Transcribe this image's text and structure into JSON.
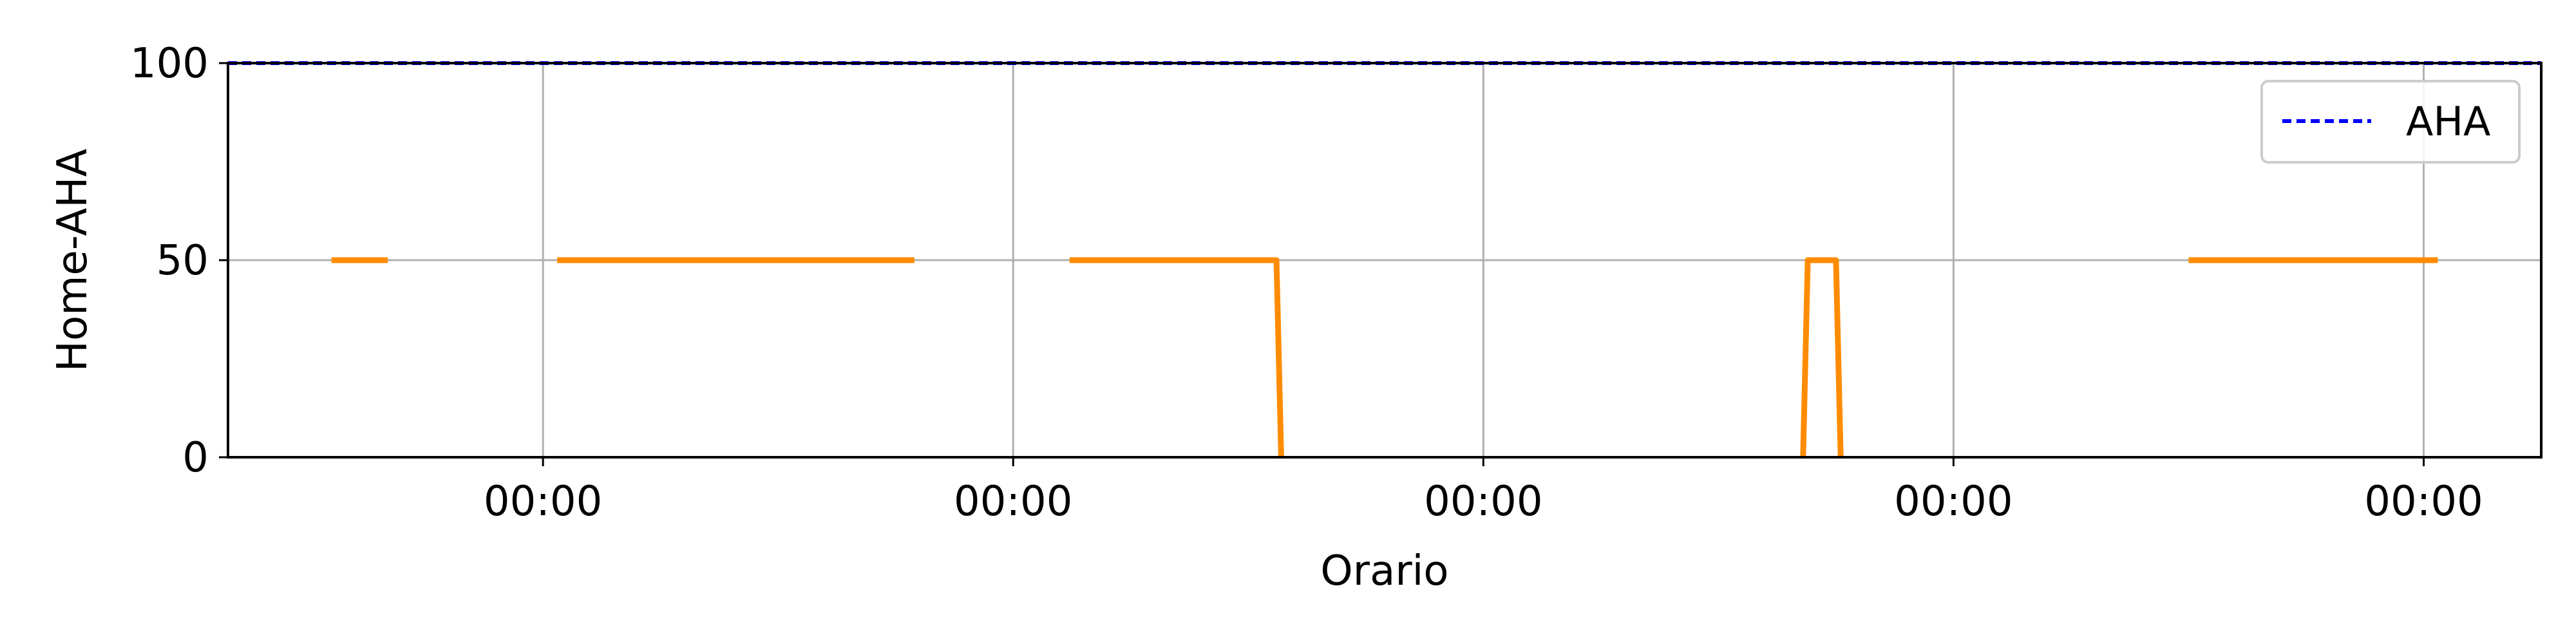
{
  "chart_data": {
    "type": "line",
    "title": "",
    "xlabel": "Orario",
    "ylabel": "Home-AHA",
    "ylim": [
      0,
      100
    ],
    "yticks": [
      0,
      50,
      100
    ],
    "xlim": [
      -0.67,
      4.25
    ],
    "xticks": [
      0,
      1,
      2,
      3,
      4
    ],
    "xtick_labels": [
      "00:00",
      "00:00",
      "00:00",
      "00:00",
      "00:00"
    ],
    "grid": true,
    "legend_position": "top-right",
    "series": [
      {
        "name": "",
        "color": "#ff8c00",
        "segments": [
          [
            [
              -0.45,
              50
            ],
            [
              -0.33,
              50
            ]
          ],
          [
            [
              0.03,
              50
            ],
            [
              0.79,
              50
            ]
          ],
          [
            [
              1.12,
              50
            ],
            [
              1.56,
              50
            ],
            [
              1.57,
              0
            ]
          ],
          [
            [
              2.68,
              0
            ],
            [
              2.69,
              50
            ],
            [
              2.75,
              50
            ],
            [
              2.76,
              0
            ]
          ],
          [
            [
              3.5,
              50
            ],
            [
              4.03,
              50
            ]
          ]
        ]
      },
      {
        "name": "AHA",
        "color": "#0000ff",
        "style": "dashed",
        "segments": [
          [
            [
              -0.67,
              100
            ],
            [
              4.25,
              100
            ]
          ]
        ]
      }
    ]
  }
}
